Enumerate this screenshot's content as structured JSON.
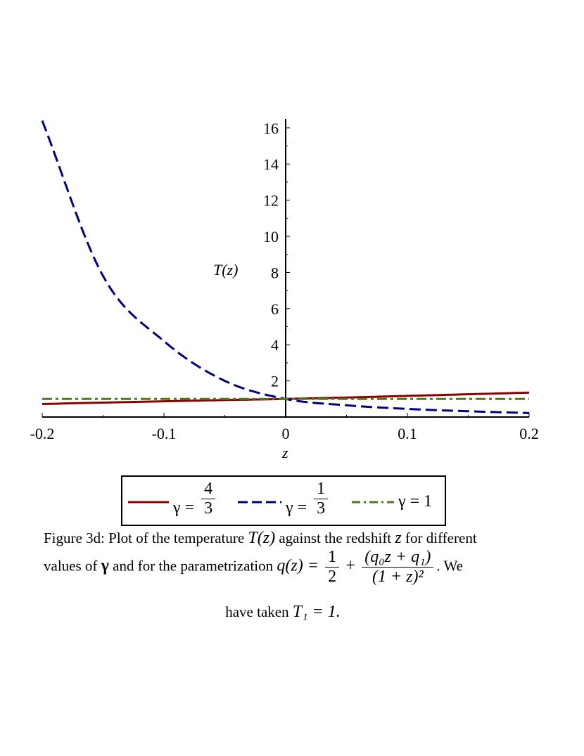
{
  "chart_data": {
    "type": "line",
    "xlabel": "z",
    "ylabel": "T(z)",
    "xlim": [
      -0.2,
      0.2
    ],
    "ylim": [
      0,
      16.5
    ],
    "x_ticks": [
      -0.2,
      -0.1,
      0,
      0.1,
      0.2
    ],
    "x_tick_labels": [
      "-0.2",
      "-0.1",
      "0",
      "0.1",
      "0.2"
    ],
    "y_ticks": [
      2,
      4,
      6,
      8,
      10,
      12,
      14,
      16
    ],
    "y_tick_labels": [
      "2",
      "4",
      "6",
      "8",
      "10",
      "12",
      "14",
      "16"
    ],
    "grid": false,
    "legend_position": "bottom",
    "x": [
      -0.2,
      -0.15,
      -0.1,
      -0.05,
      0,
      0.05,
      0.1,
      0.15,
      0.2
    ],
    "series": [
      {
        "name": "γ = 4/3",
        "color": "#8b0000",
        "style": "solid",
        "values": [
          0.72,
          0.8,
          0.87,
          0.94,
          1.0,
          1.08,
          1.17,
          1.26,
          1.35
        ]
      },
      {
        "name": "γ = 1/3",
        "color": "#000080",
        "style": "dash",
        "values": [
          16.4,
          7.8,
          4.2,
          2.0,
          1.0,
          0.65,
          0.45,
          0.32,
          0.22
        ]
      },
      {
        "name": "γ = 1",
        "color": "#4f7a17",
        "style": "dashdot",
        "values": [
          1.0,
          1.0,
          1.0,
          1.0,
          1.0,
          1.0,
          1.0,
          1.0,
          1.0
        ]
      }
    ]
  },
  "legend": {
    "gamma_symbol": "γ",
    "equals": "=",
    "item1_num": "4",
    "item1_den": "3",
    "item2_num": "1",
    "item2_den": "3",
    "item3_value": "1"
  },
  "caption": {
    "line1_a": "Figure 3d: Plot of the temperature ",
    "line1_math": "T(z)",
    "line1_b": " against the redshift ",
    "line1_z": "z",
    "line1_c": " for different",
    "line2_a": "values of ",
    "line2_gamma": "γ",
    "line2_b": " and for the parametrization ",
    "line2_q": "q(z) =",
    "line2_half_num": "1",
    "line2_half_den": "2",
    "line2_plus": "+",
    "line2_frac_num": "(q₀z + q₁)",
    "line2_frac_den": "(1 + z)²",
    "line2_end": ". We",
    "line3_a": "have taken ",
    "line3_math": "T₁ = 1."
  }
}
